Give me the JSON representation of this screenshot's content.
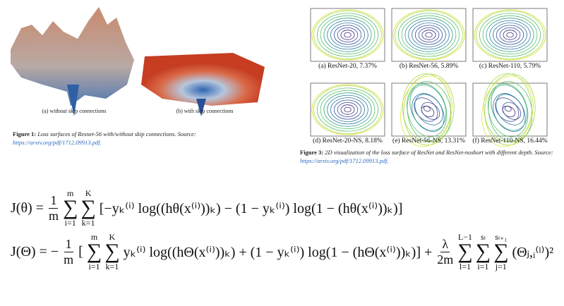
{
  "figure1": {
    "subcaptions": [
      "(a) without skip connections",
      "(b) with skip connections"
    ],
    "label": "Figure 1:",
    "caption": "Loss surfaces of Resnet-56 with/without skip connections. Source:",
    "link": "https://arxiv.org/pdf/1712.09913.pdf."
  },
  "figure3": {
    "panels": [
      "(a) ResNet-20, 7.37%",
      "(b) ResNet-56, 5.89%",
      "(c) ResNet-110, 5.79%",
      "(d) ResNet-20-NS, 8.18%",
      "(e) ResNet-56-NS, 13.31%",
      "(f) ResNet-110-NS, 16.44%"
    ],
    "label": "Figure 3:",
    "caption": "2D visualization of the loss surface of ResNet and ResNet-noshort with different depth. Source:",
    "link": "https://arxiv.org/pdf/1712.09913.pdf."
  },
  "equations": [
    {
      "parts": [
        {
          "text": "J(θ) ="
        },
        {
          "frac": [
            "1",
            "m"
          ]
        },
        {
          "sum": {
            "top": "m",
            "symbol": "∑",
            "bottom": "i=1"
          }
        },
        {
          "sum": {
            "top": "K",
            "symbol": "∑",
            "bottom": "k=1"
          }
        },
        {
          "text": "[−yₖ⁽ⁱ⁾ log((hθ(x⁽ⁱ⁾))ₖ) − (1 − yₖ⁽ⁱ⁾) log(1 − (hθ(x⁽ⁱ⁾))ₖ)]"
        }
      ]
    },
    {
      "parts": [
        {
          "text": "J(Θ) = −"
        },
        {
          "frac": [
            "1",
            "m"
          ]
        },
        {
          "text": "["
        },
        {
          "sum": {
            "top": "m",
            "symbol": "∑",
            "bottom": "i=1"
          }
        },
        {
          "sum": {
            "top": "K",
            "symbol": "∑",
            "bottom": "k=1"
          }
        },
        {
          "text": "yₖ⁽ⁱ⁾ log((hΘ(x⁽ⁱ⁾))ₖ) + (1 − yₖ⁽ⁱ⁾) log(1 − (hΘ(x⁽ⁱ⁾))ₖ)] +"
        },
        {
          "frac": [
            "λ",
            "2m"
          ]
        },
        {
          "sum": {
            "top": "L−1",
            "symbol": "∑",
            "bottom": "l=1"
          }
        },
        {
          "sum": {
            "top": "sₗ",
            "symbol": "∑",
            "bottom": "i=1"
          }
        },
        {
          "sum": {
            "top": "sₗ₊₁",
            "symbol": "∑",
            "bottom": "j=1"
          }
        },
        {
          "text": "(Θⱼ,ᵢ⁽ˡ⁾)²"
        }
      ]
    }
  ]
}
